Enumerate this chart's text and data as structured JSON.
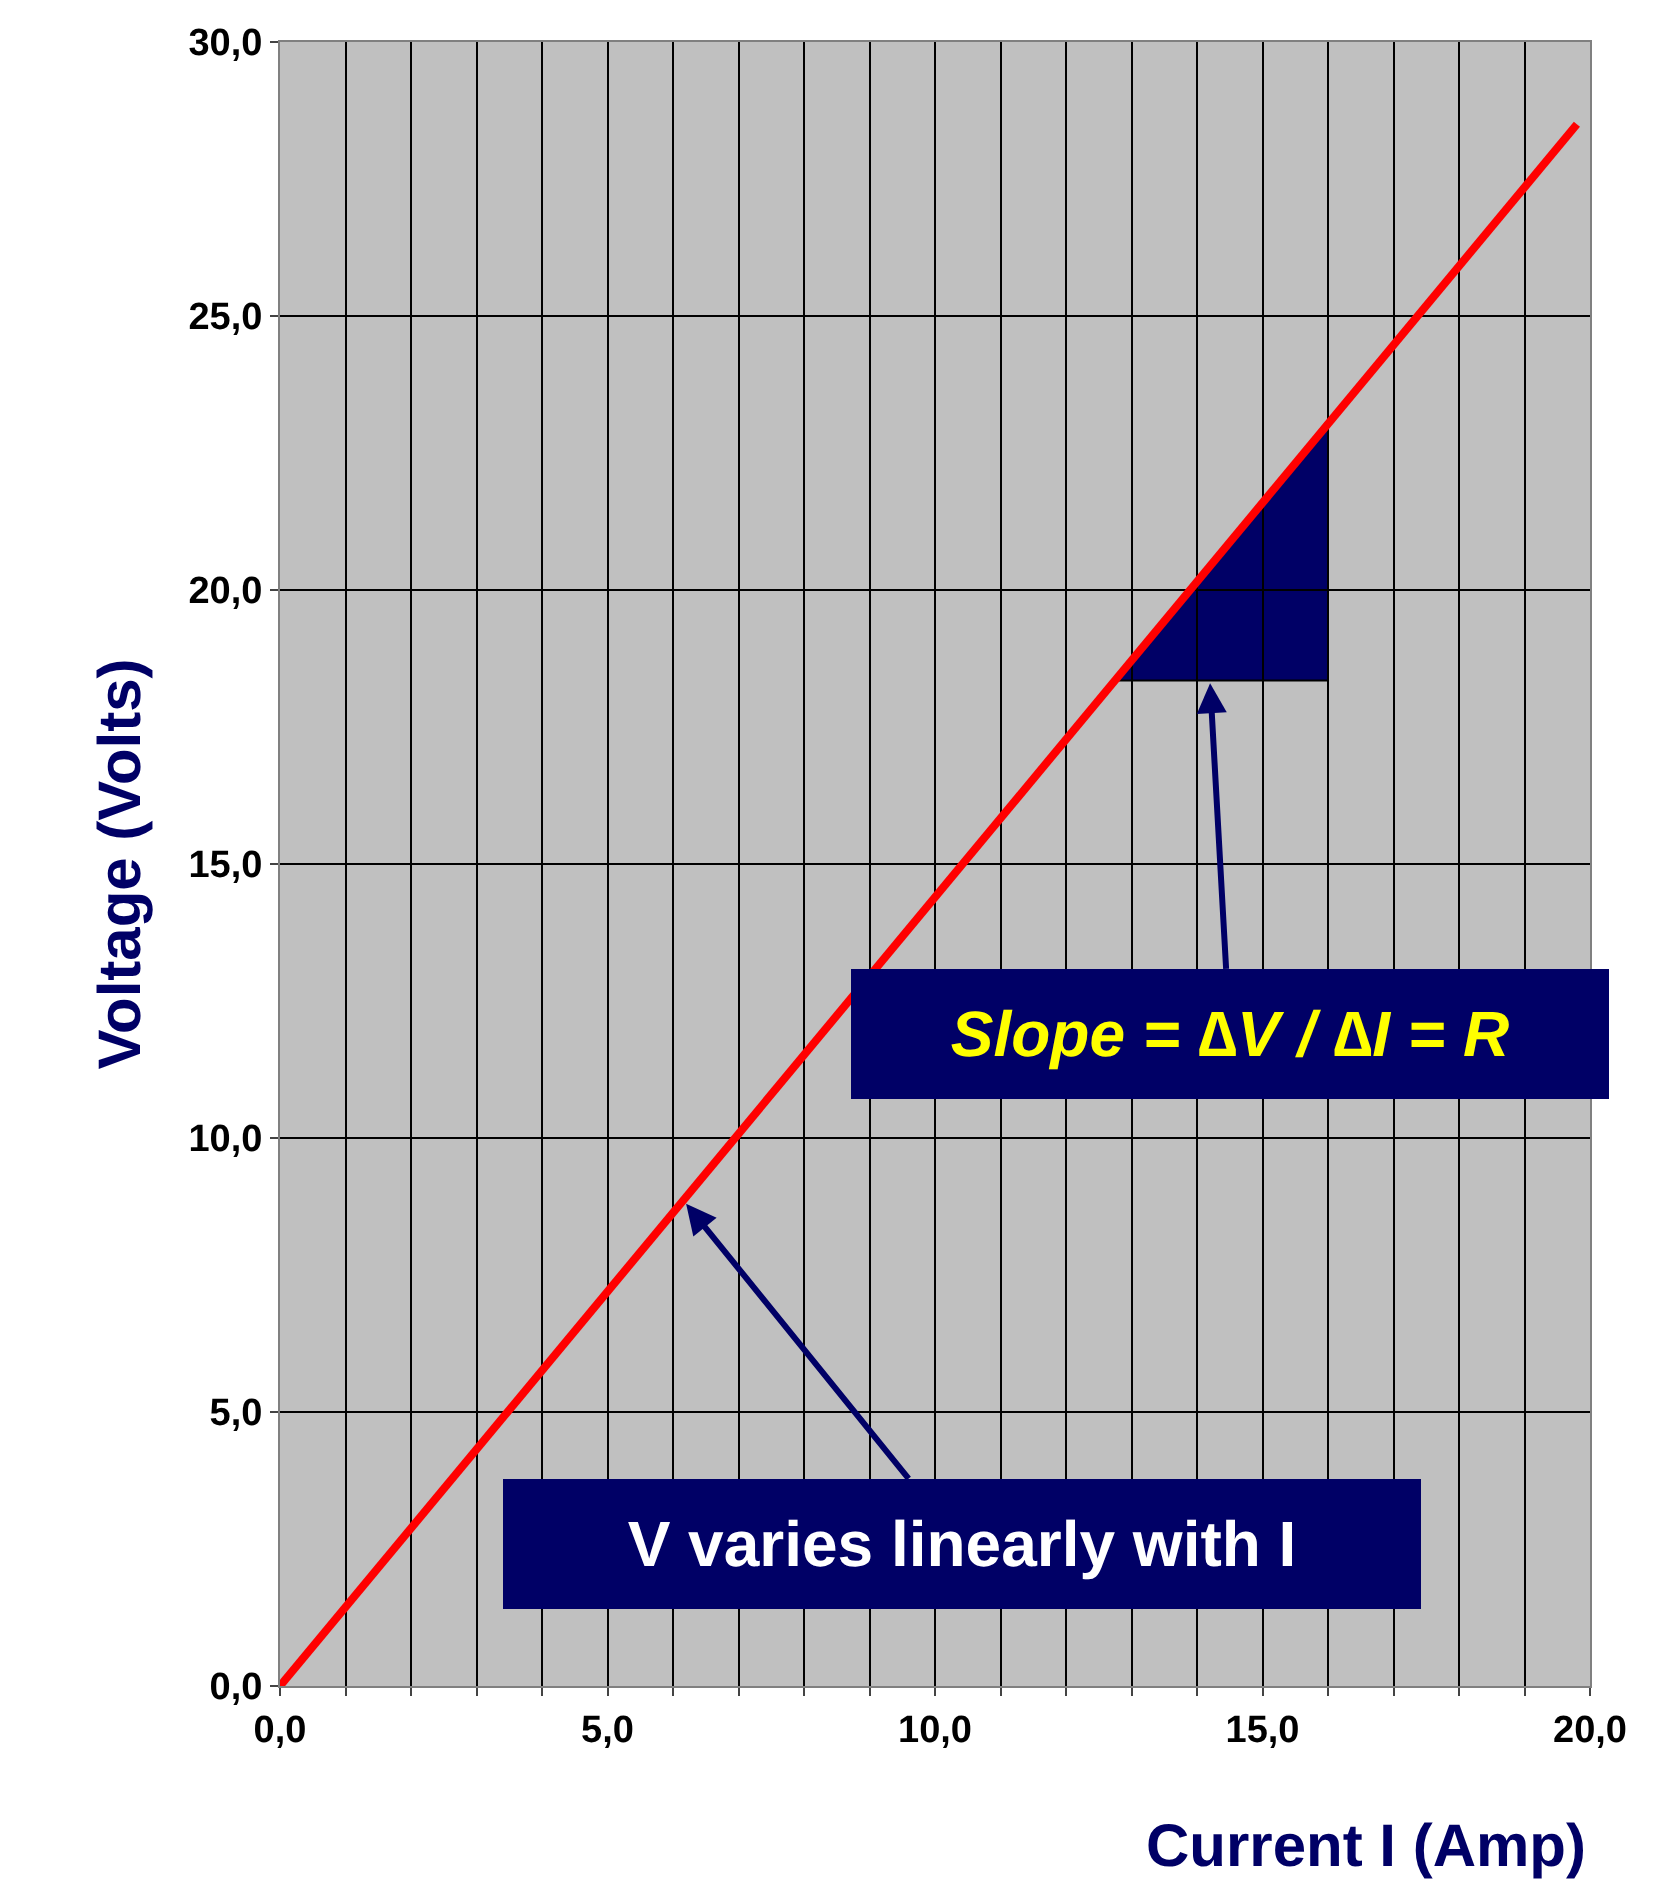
{
  "chart_data": {
    "type": "line",
    "xlabel": "Current I (Amp)",
    "ylabel": "Voltage (Volts)",
    "x": [
      0,
      19.8
    ],
    "series": [
      {
        "color": "#ff0000",
        "values": [
          0,
          28.5
        ]
      }
    ],
    "xlim": [
      0,
      20
    ],
    "ylim": [
      0,
      30
    ],
    "xticks": [
      {
        "value": 0,
        "label": "0,0"
      },
      {
        "value": 1,
        "label": null
      },
      {
        "value": 2,
        "label": null
      },
      {
        "value": 3,
        "label": null
      },
      {
        "value": 4,
        "label": null
      },
      {
        "value": 5,
        "label": "5,0"
      },
      {
        "value": 6,
        "label": null
      },
      {
        "value": 7,
        "label": null
      },
      {
        "value": 8,
        "label": null
      },
      {
        "value": 9,
        "label": null
      },
      {
        "value": 10,
        "label": "10,0"
      },
      {
        "value": 11,
        "label": null
      },
      {
        "value": 12,
        "label": null
      },
      {
        "value": 13,
        "label": null
      },
      {
        "value": 14,
        "label": null
      },
      {
        "value": 15,
        "label": "15,0"
      },
      {
        "value": 16,
        "label": null
      },
      {
        "value": 17,
        "label": null
      },
      {
        "value": 18,
        "label": null
      },
      {
        "value": 19,
        "label": null
      },
      {
        "value": 20,
        "label": "20,0"
      }
    ],
    "yticks": [
      {
        "value": 0,
        "label": "0,0"
      },
      {
        "value": 5,
        "label": "5,0"
      },
      {
        "value": 10,
        "label": "10,0"
      },
      {
        "value": 15,
        "label": "15,0"
      },
      {
        "value": 20,
        "label": "20,0"
      },
      {
        "value": 25,
        "label": "25,0"
      },
      {
        "value": 30,
        "label": "30,0"
      }
    ],
    "grid": true,
    "marker": "none",
    "line_style": "solid",
    "annotations": [
      "Slope = ∆V / ∆I = R",
      {
        "text": "V varies linearly with I",
        "x": 6.2,
        "y": 8.8
      }
    ]
  }
}
